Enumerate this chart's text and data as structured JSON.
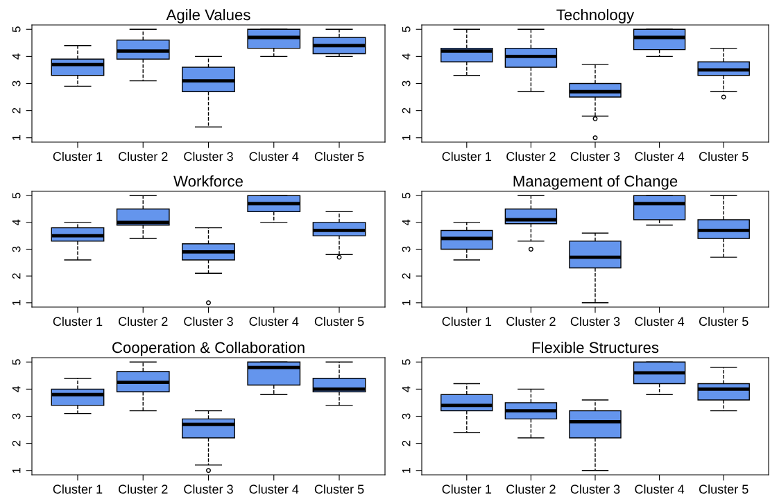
{
  "chart_data": [
    {
      "type": "box",
      "title": "Agile Values",
      "categories": [
        "Cluster 1",
        "Cluster 2",
        "Cluster 3",
        "Cluster 4",
        "Cluster 5"
      ],
      "ylim": [
        0.84,
        5.16
      ],
      "yticks": [
        1,
        2,
        3,
        4,
        5
      ],
      "grid": false,
      "line_style": "dashed",
      "series": [
        {
          "color": "#6495ed",
          "boxes": [
            {
              "low": 2.9,
              "q1": 3.3,
              "median": 3.7,
              "q3": 3.9,
              "high": 4.4
            },
            {
              "low": 3.1,
              "q1": 3.9,
              "median": 4.2,
              "q3": 4.6,
              "high": 5
            },
            {
              "low": 1.4,
              "q1": 2.7,
              "median": 3.1,
              "q3": 3.6,
              "high": 4
            },
            {
              "low": 4.0,
              "q1": 4.3,
              "median": 4.7,
              "q3": 5,
              "high": 5
            },
            {
              "low": 4.0,
              "q1": 4.1,
              "median": 4.4,
              "q3": 4.7,
              "high": 5
            }
          ]
        }
      ]
    },
    {
      "type": "box",
      "title": "Technology",
      "categories": [
        "Cluster 1",
        "Cluster 2",
        "Cluster 3",
        "Cluster 4",
        "Cluster 5"
      ],
      "ylim": [
        0.84,
        5.16
      ],
      "yticks": [
        1,
        2,
        3,
        4,
        5
      ],
      "grid": false,
      "line_style": "dashed",
      "series": [
        {
          "color": "#6495ed",
          "boxes": [
            {
              "low": 3.3,
              "q1": 3.8,
              "median": 4.2,
              "q3": 4.3,
              "high": 5
            },
            {
              "low": 2.7,
              "q1": 3.6,
              "median": 4.0,
              "q3": 4.3,
              "high": 5
            },
            {
              "low": 1.8,
              "q1": 2.5,
              "median": 2.7,
              "q3": 3.0,
              "high": 3.7,
              "outliers": [
                1.7,
                1.0
              ]
            },
            {
              "low": 4.0,
              "q1": 4.25,
              "median": 4.7,
              "q3": 5,
              "high": 5
            },
            {
              "low": 2.7,
              "q1": 3.3,
              "median": 3.5,
              "q3": 3.8,
              "high": 4.3,
              "outliers": [
                2.5
              ]
            }
          ]
        }
      ]
    },
    {
      "type": "box",
      "title": "Workforce",
      "categories": [
        "Cluster 1",
        "Cluster 2",
        "Cluster 3",
        "Cluster 4",
        "Cluster 5"
      ],
      "ylim": [
        0.84,
        5.16
      ],
      "yticks": [
        1,
        2,
        3,
        4,
        5
      ],
      "grid": false,
      "line_style": "dashed",
      "series": [
        {
          "color": "#6495ed",
          "boxes": [
            {
              "low": 2.6,
              "q1": 3.3,
              "median": 3.5,
              "q3": 3.8,
              "high": 4.0
            },
            {
              "low": 3.4,
              "q1": 3.9,
              "median": 4.0,
              "q3": 4.5,
              "high": 5
            },
            {
              "low": 2.1,
              "q1": 2.6,
              "median": 2.9,
              "q3": 3.2,
              "high": 3.8,
              "outliers": [
                1.0
              ]
            },
            {
              "low": 4.0,
              "q1": 4.4,
              "median": 4.7,
              "q3": 5,
              "high": 5
            },
            {
              "low": 2.8,
              "q1": 3.5,
              "median": 3.7,
              "q3": 4.0,
              "high": 4.4,
              "outliers": [
                2.7
              ]
            }
          ]
        }
      ]
    },
    {
      "type": "box",
      "title": "Management of Change",
      "categories": [
        "Cluster 1",
        "Cluster 2",
        "Cluster 3",
        "Cluster 4",
        "Cluster 5"
      ],
      "ylim": [
        0.84,
        5.16
      ],
      "yticks": [
        1,
        2,
        3,
        4,
        5
      ],
      "grid": false,
      "line_style": "dashed",
      "series": [
        {
          "color": "#6495ed",
          "boxes": [
            {
              "low": 2.6,
              "q1": 3.0,
              "median": 3.4,
              "q3": 3.7,
              "high": 4.0
            },
            {
              "low": 3.3,
              "q1": 3.95,
              "median": 4.1,
              "q3": 4.5,
              "high": 5,
              "outliers": [
                3.0
              ]
            },
            {
              "low": 1.0,
              "q1": 2.3,
              "median": 2.7,
              "q3": 3.3,
              "high": 3.6
            },
            {
              "low": 3.9,
              "q1": 4.1,
              "median": 4.7,
              "q3": 5,
              "high": 5
            },
            {
              "low": 2.7,
              "q1": 3.4,
              "median": 3.7,
              "q3": 4.1,
              "high": 5
            }
          ]
        }
      ]
    },
    {
      "type": "box",
      "title": "Cooperation & Collaboration",
      "categories": [
        "Cluster 1",
        "Cluster 2",
        "Cluster 3",
        "Cluster 4",
        "Cluster 5"
      ],
      "ylim": [
        0.84,
        5.16
      ],
      "yticks": [
        1,
        2,
        3,
        4,
        5
      ],
      "grid": false,
      "line_style": "dashed",
      "series": [
        {
          "color": "#6495ed",
          "boxes": [
            {
              "low": 3.1,
              "q1": 3.4,
              "median": 3.8,
              "q3": 4.0,
              "high": 4.4
            },
            {
              "low": 3.2,
              "q1": 3.9,
              "median": 4.25,
              "q3": 4.65,
              "high": 5
            },
            {
              "low": 1.2,
              "q1": 2.2,
              "median": 2.7,
              "q3": 2.9,
              "high": 3.2,
              "outliers": [
                1.0
              ]
            },
            {
              "low": 3.8,
              "q1": 4.15,
              "median": 4.8,
              "q3": 5,
              "high": 5
            },
            {
              "low": 3.4,
              "q1": 3.9,
              "median": 4.0,
              "q3": 4.4,
              "high": 5
            }
          ]
        }
      ]
    },
    {
      "type": "box",
      "title": "Flexible Structures",
      "categories": [
        "Cluster 1",
        "Cluster 2",
        "Cluster 3",
        "Cluster 4",
        "Cluster 5"
      ],
      "ylim": [
        0.84,
        5.16
      ],
      "yticks": [
        1,
        2,
        3,
        4,
        5
      ],
      "grid": false,
      "line_style": "dashed",
      "series": [
        {
          "color": "#6495ed",
          "boxes": [
            {
              "low": 2.4,
              "q1": 3.2,
              "median": 3.4,
              "q3": 3.8,
              "high": 4.2
            },
            {
              "low": 2.2,
              "q1": 2.9,
              "median": 3.2,
              "q3": 3.5,
              "high": 4.0
            },
            {
              "low": 1.0,
              "q1": 2.2,
              "median": 2.8,
              "q3": 3.2,
              "high": 3.6
            },
            {
              "low": 3.8,
              "q1": 4.2,
              "median": 4.6,
              "q3": 5,
              "high": 5
            },
            {
              "low": 3.2,
              "q1": 3.6,
              "median": 4.0,
              "q3": 4.2,
              "high": 4.8
            }
          ]
        }
      ]
    }
  ]
}
